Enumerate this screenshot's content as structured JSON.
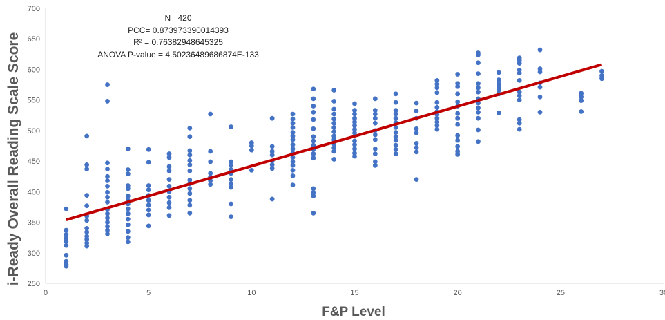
{
  "chart_data": {
    "type": "scatter",
    "title": "",
    "xlabel": "F&P Level",
    "ylabel": "i-Ready Overall Reading Scale Score",
    "xlim": [
      0,
      30
    ],
    "ylim": [
      250,
      700
    ],
    "x_ticks": [
      0,
      5,
      10,
      15,
      20,
      25,
      30
    ],
    "y_ticks": [
      250,
      300,
      350,
      400,
      450,
      500,
      550,
      600,
      650,
      700
    ],
    "grid": false,
    "legend": "none",
    "annotations": [
      "N= 420",
      "PCC= 0.873973390014393",
      "R² = 0.76382948645325",
      "ANOVA P-value = 4.50236489686874E-133"
    ],
    "point_color": "#4472c4",
    "trendline_color": "#c00000",
    "trendline": {
      "x": [
        1,
        27
      ],
      "y": [
        354,
        608
      ]
    },
    "series": [
      {
        "points": [
          [
            1,
            372
          ],
          [
            1,
            337
          ],
          [
            1,
            330
          ],
          [
            1,
            324
          ],
          [
            1,
            319
          ],
          [
            1,
            312
          ],
          [
            1,
            296
          ],
          [
            1,
            286
          ],
          [
            1,
            281
          ],
          [
            1,
            278
          ],
          [
            2,
            491
          ],
          [
            2,
            444
          ],
          [
            2,
            437
          ],
          [
            2,
            394
          ],
          [
            2,
            377
          ],
          [
            2,
            360
          ],
          [
            2,
            353
          ],
          [
            2,
            340
          ],
          [
            2,
            334
          ],
          [
            2,
            327
          ],
          [
            2,
            322
          ],
          [
            2,
            316
          ],
          [
            2,
            311
          ],
          [
            3,
            575
          ],
          [
            3,
            548
          ],
          [
            3,
            447
          ],
          [
            3,
            437
          ],
          [
            3,
            425
          ],
          [
            3,
            418
          ],
          [
            3,
            409
          ],
          [
            3,
            399
          ],
          [
            3,
            391
          ],
          [
            3,
            383
          ],
          [
            3,
            371
          ],
          [
            3,
            364
          ],
          [
            3,
            357
          ],
          [
            3,
            350
          ],
          [
            3,
            343
          ],
          [
            3,
            337
          ],
          [
            3,
            331
          ],
          [
            4,
            470
          ],
          [
            4,
            436
          ],
          [
            4,
            429
          ],
          [
            4,
            410
          ],
          [
            4,
            405
          ],
          [
            4,
            393
          ],
          [
            4,
            386
          ],
          [
            4,
            380
          ],
          [
            4,
            372
          ],
          [
            4,
            364
          ],
          [
            4,
            355
          ],
          [
            4,
            346
          ],
          [
            4,
            335
          ],
          [
            4,
            325
          ],
          [
            4,
            318
          ],
          [
            5,
            469
          ],
          [
            5,
            448
          ],
          [
            5,
            410
          ],
          [
            5,
            403
          ],
          [
            5,
            394
          ],
          [
            5,
            386
          ],
          [
            5,
            378
          ],
          [
            5,
            370
          ],
          [
            5,
            362
          ],
          [
            5,
            344
          ],
          [
            6,
            462
          ],
          [
            6,
            456
          ],
          [
            6,
            441
          ],
          [
            6,
            434
          ],
          [
            6,
            420
          ],
          [
            6,
            409
          ],
          [
            6,
            400
          ],
          [
            6,
            391
          ],
          [
            6,
            382
          ],
          [
            6,
            374
          ],
          [
            6,
            361
          ],
          [
            7,
            504
          ],
          [
            7,
            490
          ],
          [
            7,
            467
          ],
          [
            7,
            460
          ],
          [
            7,
            451
          ],
          [
            7,
            444
          ],
          [
            7,
            434
          ],
          [
            7,
            419
          ],
          [
            7,
            413
          ],
          [
            7,
            405
          ],
          [
            7,
            397
          ],
          [
            7,
            386
          ],
          [
            7,
            378
          ],
          [
            7,
            365
          ],
          [
            8,
            527
          ],
          [
            8,
            466
          ],
          [
            8,
            449
          ],
          [
            8,
            430
          ],
          [
            8,
            424
          ],
          [
            8,
            418
          ],
          [
            8,
            412
          ],
          [
            9,
            506
          ],
          [
            9,
            449
          ],
          [
            9,
            443
          ],
          [
            9,
            436
          ],
          [
            9,
            430
          ],
          [
            9,
            420
          ],
          [
            9,
            413
          ],
          [
            9,
            407
          ],
          [
            9,
            380
          ],
          [
            9,
            359
          ],
          [
            10,
            480
          ],
          [
            10,
            475
          ],
          [
            10,
            468
          ],
          [
            10,
            435
          ],
          [
            11,
            520
          ],
          [
            11,
            474
          ],
          [
            11,
            466
          ],
          [
            11,
            460
          ],
          [
            11,
            450
          ],
          [
            11,
            444
          ],
          [
            11,
            438
          ],
          [
            11,
            388
          ],
          [
            12,
            527
          ],
          [
            12,
            519
          ],
          [
            12,
            512
          ],
          [
            12,
            505
          ],
          [
            12,
            497
          ],
          [
            12,
            491
          ],
          [
            12,
            485
          ],
          [
            12,
            477
          ],
          [
            12,
            470
          ],
          [
            12,
            463
          ],
          [
            12,
            456
          ],
          [
            12,
            449
          ],
          [
            12,
            443
          ],
          [
            12,
            435
          ],
          [
            12,
            426
          ],
          [
            12,
            411
          ],
          [
            13,
            568
          ],
          [
            13,
            552
          ],
          [
            13,
            540
          ],
          [
            13,
            530
          ],
          [
            13,
            518
          ],
          [
            13,
            503
          ],
          [
            13,
            490
          ],
          [
            13,
            483
          ],
          [
            13,
            476
          ],
          [
            13,
            469
          ],
          [
            13,
            462
          ],
          [
            13,
            455
          ],
          [
            13,
            405
          ],
          [
            13,
            398
          ],
          [
            13,
            393
          ],
          [
            13,
            365
          ],
          [
            14,
            566
          ],
          [
            14,
            548
          ],
          [
            14,
            535
          ],
          [
            14,
            527
          ],
          [
            14,
            519
          ],
          [
            14,
            512
          ],
          [
            14,
            505
          ],
          [
            14,
            498
          ],
          [
            14,
            491
          ],
          [
            14,
            485
          ],
          [
            14,
            478
          ],
          [
            14,
            472
          ],
          [
            14,
            466
          ],
          [
            14,
            453
          ],
          [
            15,
            544
          ],
          [
            15,
            533
          ],
          [
            15,
            527
          ],
          [
            15,
            520
          ],
          [
            15,
            514
          ],
          [
            15,
            508
          ],
          [
            15,
            502
          ],
          [
            15,
            496
          ],
          [
            15,
            483
          ],
          [
            15,
            477
          ],
          [
            15,
            470
          ],
          [
            15,
            463
          ],
          [
            15,
            458
          ],
          [
            16,
            552
          ],
          [
            16,
            533
          ],
          [
            16,
            527
          ],
          [
            16,
            520
          ],
          [
            16,
            512
          ],
          [
            16,
            500
          ],
          [
            16,
            493
          ],
          [
            16,
            485
          ],
          [
            16,
            470
          ],
          [
            16,
            462
          ],
          [
            16,
            449
          ],
          [
            16,
            443
          ],
          [
            17,
            560
          ],
          [
            17,
            546
          ],
          [
            17,
            533
          ],
          [
            17,
            527
          ],
          [
            17,
            520
          ],
          [
            17,
            513
          ],
          [
            17,
            505
          ],
          [
            17,
            497
          ],
          [
            17,
            490
          ],
          [
            17,
            484
          ],
          [
            17,
            476
          ],
          [
            17,
            469
          ],
          [
            17,
            462
          ],
          [
            18,
            545
          ],
          [
            18,
            532
          ],
          [
            18,
            520
          ],
          [
            18,
            503
          ],
          [
            18,
            496
          ],
          [
            18,
            479
          ],
          [
            18,
            472
          ],
          [
            18,
            465
          ],
          [
            18,
            420
          ],
          [
            19,
            582
          ],
          [
            19,
            576
          ],
          [
            19,
            570
          ],
          [
            19,
            562
          ],
          [
            19,
            546
          ],
          [
            19,
            538
          ],
          [
            19,
            531
          ],
          [
            19,
            526
          ],
          [
            19,
            520
          ],
          [
            19,
            514
          ],
          [
            19,
            508
          ],
          [
            19,
            502
          ],
          [
            20,
            592
          ],
          [
            20,
            577
          ],
          [
            20,
            572
          ],
          [
            20,
            560
          ],
          [
            20,
            547
          ],
          [
            20,
            540
          ],
          [
            20,
            528
          ],
          [
            20,
            520
          ],
          [
            20,
            510
          ],
          [
            20,
            492
          ],
          [
            20,
            484
          ],
          [
            20,
            474
          ],
          [
            20,
            466
          ],
          [
            20,
            461
          ],
          [
            21,
            627
          ],
          [
            21,
            624
          ],
          [
            21,
            611
          ],
          [
            21,
            593
          ],
          [
            21,
            577
          ],
          [
            21,
            570
          ],
          [
            21,
            563
          ],
          [
            21,
            552
          ],
          [
            21,
            545
          ],
          [
            21,
            537
          ],
          [
            21,
            530
          ],
          [
            21,
            520
          ],
          [
            21,
            501
          ],
          [
            21,
            482
          ],
          [
            22,
            595
          ],
          [
            22,
            583
          ],
          [
            22,
            576
          ],
          [
            22,
            570
          ],
          [
            22,
            566
          ],
          [
            22,
            560
          ],
          [
            22,
            529
          ],
          [
            23,
            619
          ],
          [
            23,
            615
          ],
          [
            23,
            610
          ],
          [
            23,
            599
          ],
          [
            23,
            594
          ],
          [
            23,
            582
          ],
          [
            23,
            563
          ],
          [
            23,
            557
          ],
          [
            23,
            550
          ],
          [
            23,
            518
          ],
          [
            23,
            512
          ],
          [
            23,
            502
          ],
          [
            24,
            632
          ],
          [
            24,
            601
          ],
          [
            24,
            596
          ],
          [
            24,
            578
          ],
          [
            24,
            571
          ],
          [
            24,
            555
          ],
          [
            24,
            530
          ],
          [
            26,
            561
          ],
          [
            26,
            555
          ],
          [
            26,
            549
          ],
          [
            26,
            531
          ],
          [
            27,
            597
          ],
          [
            27,
            590
          ],
          [
            27,
            585
          ]
        ]
      }
    ]
  }
}
